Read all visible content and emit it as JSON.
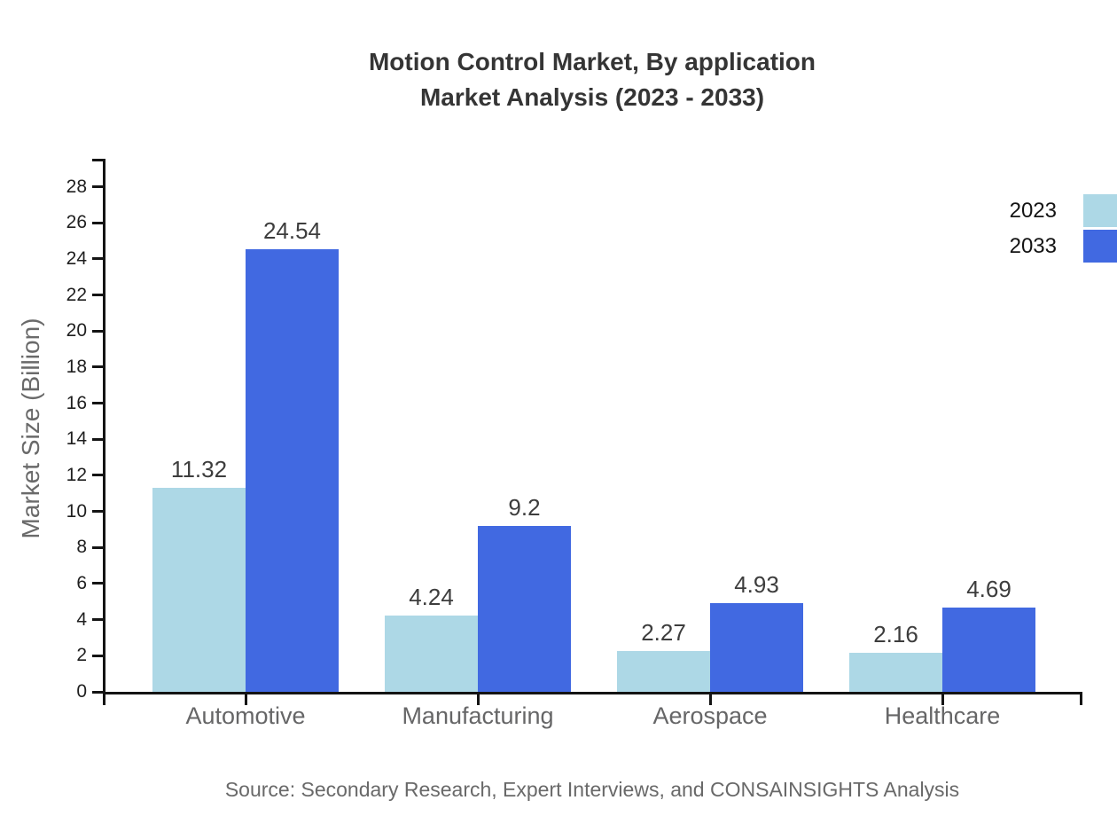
{
  "title": {
    "line1": "Motion Control Market, By application",
    "line2": "Market Analysis (2023 - 2033)"
  },
  "legend": {
    "items": [
      {
        "label": "2023",
        "color": "#add8e6"
      },
      {
        "label": "2033",
        "color": "#4169e1"
      }
    ]
  },
  "chart_data": {
    "type": "bar",
    "title": "Motion Control Market, By application Market Analysis (2023 - 2033)",
    "categories": [
      "Automotive",
      "Manufacturing",
      "Aerospace",
      "Healthcare"
    ],
    "series": [
      {
        "name": "2023",
        "color": "#add8e6",
        "values": [
          11.32,
          4.24,
          2.27,
          2.16
        ]
      },
      {
        "name": "2033",
        "color": "#4169e1",
        "values": [
          24.54,
          9.2,
          4.93,
          4.69
        ]
      }
    ],
    "xlabel": "",
    "ylabel": "Market Size (Billion)",
    "ylim": [
      0,
      29.5
    ],
    "yticks": [
      0,
      2,
      4,
      6,
      8,
      10,
      12,
      14,
      16,
      18,
      20,
      22,
      24,
      26,
      28
    ],
    "grid": false,
    "legend_position": "top-right",
    "bar_value_labels": true
  },
  "source": "Source: Secondary Research, Expert Interviews, and CONSAINSIGHTS Analysis"
}
